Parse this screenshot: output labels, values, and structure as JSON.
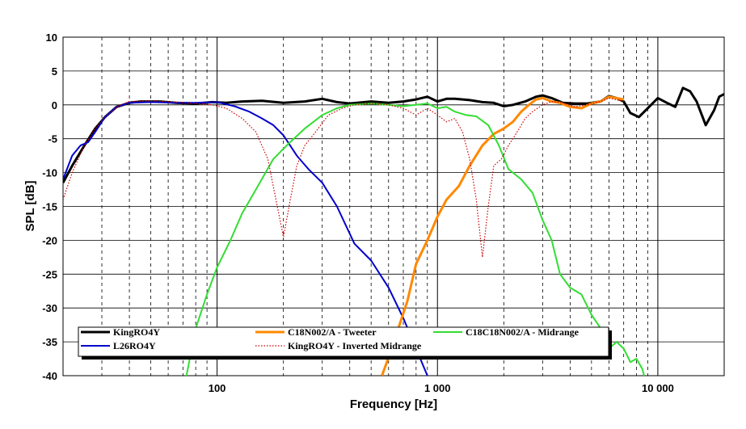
{
  "chart_data": {
    "type": "line",
    "xlabel": "Frequency [Hz]",
    "ylabel": "SPL [dB]",
    "xscale": "log",
    "xlim": [
      20,
      20000
    ],
    "ylim": [
      -40,
      10
    ],
    "x_ticks": [
      {
        "value": 100,
        "label": "100"
      },
      {
        "value": 1000,
        "label": "1 000"
      },
      {
        "value": 10000,
        "label": "10 000"
      }
    ],
    "y_ticks": [
      {
        "value": 10,
        "label": "10"
      },
      {
        "value": 5,
        "label": "5"
      },
      {
        "value": 0,
        "label": "0"
      },
      {
        "value": -5,
        "label": "-5"
      },
      {
        "value": -10,
        "label": "-10"
      },
      {
        "value": -15,
        "label": "-15"
      },
      {
        "value": -20,
        "label": "-20"
      },
      {
        "value": -25,
        "label": "-25"
      },
      {
        "value": -30,
        "label": "-30"
      },
      {
        "value": -35,
        "label": "-35"
      },
      {
        "value": -40,
        "label": "-40"
      }
    ],
    "grid": true,
    "legend_placement": "bottom",
    "series": [
      {
        "name": "KingRO4Y",
        "color": "#000000",
        "style": "solid",
        "points": [
          [
            20,
            -11.5
          ],
          [
            22,
            -9
          ],
          [
            25,
            -6
          ],
          [
            28,
            -3.5
          ],
          [
            31,
            -1.8
          ],
          [
            35,
            -0.3
          ],
          [
            40,
            0.3
          ],
          [
            45,
            0.5
          ],
          [
            55,
            0.5
          ],
          [
            65,
            0.3
          ],
          [
            80,
            0.2
          ],
          [
            95,
            0.4
          ],
          [
            110,
            0.3
          ],
          [
            130,
            0.5
          ],
          [
            160,
            0.6
          ],
          [
            200,
            0.3
          ],
          [
            250,
            0.5
          ],
          [
            300,
            0.9
          ],
          [
            350,
            0.4
          ],
          [
            400,
            0.2
          ],
          [
            500,
            0.5
          ],
          [
            600,
            0.3
          ],
          [
            700,
            0.5
          ],
          [
            800,
            0.8
          ],
          [
            900,
            1.2
          ],
          [
            1000,
            0.5
          ],
          [
            1100,
            0.9
          ],
          [
            1200,
            0.9
          ],
          [
            1400,
            0.7
          ],
          [
            1600,
            0.4
          ],
          [
            1800,
            0.3
          ],
          [
            2000,
            -0.2
          ],
          [
            2200,
            0
          ],
          [
            2500,
            0.5
          ],
          [
            2800,
            1.2
          ],
          [
            3000,
            1.4
          ],
          [
            3300,
            1.0
          ],
          [
            3700,
            0.3
          ],
          [
            4200,
            0.2
          ],
          [
            4800,
            0.2
          ],
          [
            5500,
            0.5
          ],
          [
            6000,
            1.3
          ],
          [
            6500,
            1.0
          ],
          [
            7000,
            0.5
          ],
          [
            7500,
            -1.2
          ],
          [
            8200,
            -1.8
          ],
          [
            9000,
            -0.5
          ],
          [
            10000,
            1.0
          ],
          [
            11000,
            0.3
          ],
          [
            12000,
            -0.3
          ],
          [
            13000,
            2.5
          ],
          [
            14000,
            2.0
          ],
          [
            15000,
            0.5
          ],
          [
            16500,
            -3.0
          ],
          [
            18000,
            -0.8
          ],
          [
            19000,
            1.2
          ],
          [
            20000,
            1.6
          ]
        ]
      },
      {
        "name": "L26RO4Y",
        "color": "#0000cc",
        "style": "solid",
        "points": [
          [
            20,
            -11
          ],
          [
            22,
            -7.5
          ],
          [
            24,
            -6
          ],
          [
            26,
            -5.5
          ],
          [
            28,
            -4
          ],
          [
            31,
            -1.8
          ],
          [
            35,
            -0.3
          ],
          [
            40,
            0.3
          ],
          [
            50,
            0.4
          ],
          [
            65,
            0.3
          ],
          [
            80,
            0.3
          ],
          [
            100,
            0.4
          ],
          [
            120,
            -0.2
          ],
          [
            140,
            -1.0
          ],
          [
            160,
            -2.0
          ],
          [
            180,
            -3.0
          ],
          [
            200,
            -4.5
          ],
          [
            230,
            -7.5
          ],
          [
            260,
            -9.5
          ],
          [
            300,
            -11.5
          ],
          [
            350,
            -15
          ],
          [
            420,
            -20.5
          ],
          [
            500,
            -23
          ],
          [
            600,
            -27
          ],
          [
            700,
            -31.5
          ],
          [
            800,
            -36
          ],
          [
            900,
            -40
          ],
          [
            960,
            -44
          ]
        ]
      },
      {
        "name": "C18N002/A - Tweeter",
        "color": "#ff8800",
        "style": "solid",
        "points": [
          [
            560,
            -40
          ],
          [
            620,
            -36
          ],
          [
            680,
            -32
          ],
          [
            730,
            -29
          ],
          [
            800,
            -23.5
          ],
          [
            900,
            -20
          ],
          [
            1000,
            -16.5
          ],
          [
            1100,
            -14
          ],
          [
            1250,
            -12
          ],
          [
            1400,
            -9
          ],
          [
            1600,
            -6
          ],
          [
            1800,
            -4.3
          ],
          [
            2000,
            -3.5
          ],
          [
            2200,
            -2.5
          ],
          [
            2400,
            -1.0
          ],
          [
            2600,
            0
          ],
          [
            2800,
            0.8
          ],
          [
            3000,
            1.0
          ],
          [
            3300,
            0.5
          ],
          [
            3600,
            0.3
          ],
          [
            4000,
            -0.3
          ],
          [
            4500,
            -0.5
          ],
          [
            5000,
            0.2
          ],
          [
            5500,
            0.5
          ],
          [
            6000,
            1.2
          ],
          [
            7000,
            0.8
          ]
        ]
      },
      {
        "name": "C18C18N002/A - Midrange",
        "color": "#33dd33",
        "style": "solid",
        "points": [
          [
            65,
            -48
          ],
          [
            80,
            -33
          ],
          [
            90,
            -28
          ],
          [
            100,
            -24
          ],
          [
            115,
            -20
          ],
          [
            130,
            -16
          ],
          [
            150,
            -12.5
          ],
          [
            180,
            -8
          ],
          [
            210,
            -5.8
          ],
          [
            250,
            -3.5
          ],
          [
            300,
            -1.5
          ],
          [
            350,
            -0.5
          ],
          [
            400,
            0
          ],
          [
            500,
            0.2
          ],
          [
            600,
            0
          ],
          [
            700,
            -0.2
          ],
          [
            800,
            0
          ],
          [
            900,
            0.2
          ],
          [
            1000,
            -0.5
          ],
          [
            1100,
            -0.3
          ],
          [
            1200,
            -1.0
          ],
          [
            1350,
            -1.5
          ],
          [
            1500,
            -1.7
          ],
          [
            1700,
            -3
          ],
          [
            1900,
            -6
          ],
          [
            2100,
            -9.5
          ],
          [
            2400,
            -11
          ],
          [
            2700,
            -13
          ],
          [
            3000,
            -17
          ],
          [
            3300,
            -20
          ],
          [
            3600,
            -25
          ],
          [
            4000,
            -27
          ],
          [
            4500,
            -28
          ],
          [
            5000,
            -31
          ],
          [
            5500,
            -33
          ],
          [
            6000,
            -36
          ],
          [
            6500,
            -35
          ],
          [
            7000,
            -36
          ],
          [
            7500,
            -38
          ],
          [
            8000,
            -37.5
          ],
          [
            8500,
            -39
          ],
          [
            9000,
            -42
          ]
        ]
      },
      {
        "name": "KingRO4Y - Inverted Midrange",
        "color": "#cc0000",
        "style": "dotted",
        "points": [
          [
            20,
            -14
          ],
          [
            22,
            -10
          ],
          [
            25,
            -6
          ],
          [
            28,
            -3.5
          ],
          [
            31,
            -1.8
          ],
          [
            35,
            -0.3
          ],
          [
            40,
            0.5
          ],
          [
            50,
            0.6
          ],
          [
            65,
            0.4
          ],
          [
            80,
            0.2
          ],
          [
            95,
            0
          ],
          [
            110,
            -0.5
          ],
          [
            130,
            -2
          ],
          [
            150,
            -4
          ],
          [
            170,
            -8
          ],
          [
            185,
            -14
          ],
          [
            200,
            -19.5
          ],
          [
            215,
            -14
          ],
          [
            230,
            -9
          ],
          [
            250,
            -6
          ],
          [
            280,
            -4
          ],
          [
            320,
            -1.5
          ],
          [
            370,
            -0.5
          ],
          [
            420,
            0
          ],
          [
            500,
            0.2
          ],
          [
            600,
            0
          ],
          [
            700,
            -0.5
          ],
          [
            800,
            -1.5
          ],
          [
            900,
            -0.5
          ],
          [
            1000,
            -1.5
          ],
          [
            1100,
            -2.5
          ],
          [
            1200,
            -2
          ],
          [
            1300,
            -4
          ],
          [
            1400,
            -8
          ],
          [
            1500,
            -14
          ],
          [
            1600,
            -22.5
          ],
          [
            1700,
            -15
          ],
          [
            1800,
            -9
          ],
          [
            1950,
            -8
          ],
          [
            2100,
            -6
          ],
          [
            2300,
            -4
          ],
          [
            2500,
            -2
          ],
          [
            2700,
            -1
          ],
          [
            3000,
            0
          ],
          [
            3300,
            0.5
          ],
          [
            3700,
            0.3
          ],
          [
            4200,
            -0.3
          ],
          [
            4800,
            0
          ],
          [
            5500,
            0.5
          ],
          [
            6000,
            1.0
          ],
          [
            7000,
            0.5
          ]
        ]
      }
    ]
  }
}
